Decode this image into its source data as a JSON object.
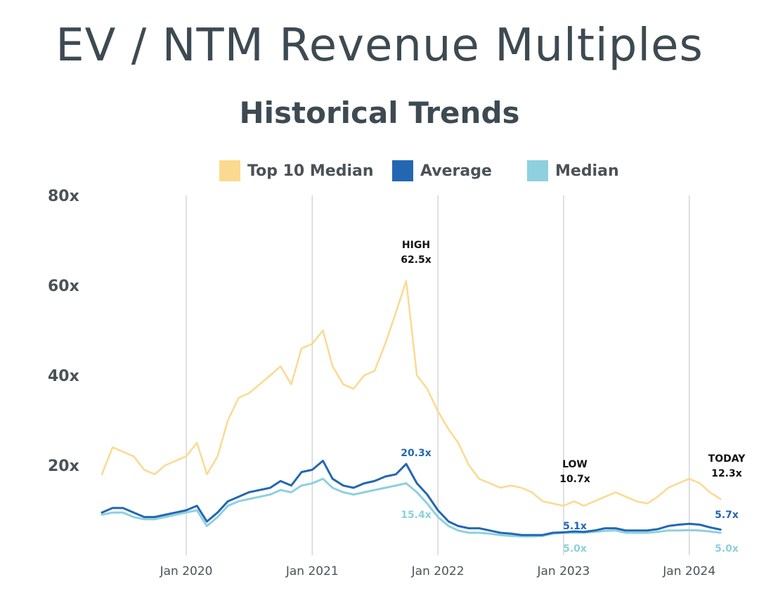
{
  "title": "EV / NTM Revenue Multiples",
  "subtitle": "Historical Trends",
  "colors": {
    "top10": "#fcd990",
    "average": "#2367b3",
    "median": "#8ed0de",
    "grid": "#d6d6d6",
    "text": "#3d4a52"
  },
  "chart_data": {
    "type": "line",
    "ylim": [
      0,
      80
    ],
    "yticks": [
      {
        "value": 20,
        "label": "20x"
      },
      {
        "value": 40,
        "label": "40x"
      },
      {
        "value": 60,
        "label": "60x"
      },
      {
        "value": 80,
        "label": "80x"
      }
    ],
    "xlim": [
      "2019-05-01",
      "2024-05-01"
    ],
    "xticks": [
      {
        "x": "2020-01-01",
        "label": "Jan 2020"
      },
      {
        "x": "2021-01-01",
        "label": "Jan 2021"
      },
      {
        "x": "2022-01-01",
        "label": "Jan 2022"
      },
      {
        "x": "2023-01-01",
        "label": "Jan 2023"
      },
      {
        "x": "2024-01-01",
        "label": "Jan 2024"
      }
    ],
    "grid": "vertical",
    "legend": "top",
    "series": [
      {
        "name": "Top 10 Median",
        "x": [
          "2019-05-01",
          "2019-06-01",
          "2019-07-01",
          "2019-08-01",
          "2019-09-01",
          "2019-10-01",
          "2019-11-01",
          "2019-12-01",
          "2020-01-01",
          "2020-02-01",
          "2020-03-01",
          "2020-04-01",
          "2020-05-01",
          "2020-06-01",
          "2020-07-01",
          "2020-08-01",
          "2020-09-01",
          "2020-10-01",
          "2020-11-01",
          "2020-12-01",
          "2021-01-01",
          "2021-02-01",
          "2021-03-01",
          "2021-04-01",
          "2021-05-01",
          "2021-06-01",
          "2021-07-01",
          "2021-08-01",
          "2021-09-01",
          "2021-10-01",
          "2021-11-01",
          "2021-12-01",
          "2022-01-01",
          "2022-02-01",
          "2022-03-01",
          "2022-04-01",
          "2022-05-01",
          "2022-06-01",
          "2022-07-01",
          "2022-08-01",
          "2022-09-01",
          "2022-10-01",
          "2022-11-01",
          "2022-12-01",
          "2023-01-01",
          "2023-02-01",
          "2023-03-01",
          "2023-04-01",
          "2023-05-01",
          "2023-06-01",
          "2023-07-01",
          "2023-08-01",
          "2023-09-01",
          "2023-10-01",
          "2023-11-01",
          "2023-12-01",
          "2024-01-01",
          "2024-02-01",
          "2024-03-01",
          "2024-04-01"
        ],
        "y": [
          18,
          24,
          23,
          22,
          19,
          18,
          20,
          21,
          22,
          25,
          18,
          22,
          30,
          35,
          36,
          38,
          40,
          42,
          38,
          46,
          47,
          50,
          42,
          38,
          37,
          40,
          41,
          47,
          54,
          61,
          40,
          37,
          32,
          28,
          25,
          20,
          17,
          16,
          15,
          15.5,
          15,
          14,
          12,
          11.5,
          11,
          12,
          11,
          12,
          13,
          14,
          13,
          12,
          11.5,
          13,
          15,
          16,
          17,
          16,
          14,
          12.5
        ]
      },
      {
        "name": "Average",
        "x": [
          "2019-05-01",
          "2019-06-01",
          "2019-07-01",
          "2019-08-01",
          "2019-09-01",
          "2019-10-01",
          "2019-11-01",
          "2019-12-01",
          "2020-01-01",
          "2020-02-01",
          "2020-03-01",
          "2020-04-01",
          "2020-05-01",
          "2020-06-01",
          "2020-07-01",
          "2020-08-01",
          "2020-09-01",
          "2020-10-01",
          "2020-11-01",
          "2020-12-01",
          "2021-01-01",
          "2021-02-01",
          "2021-03-01",
          "2021-04-01",
          "2021-05-01",
          "2021-06-01",
          "2021-07-01",
          "2021-08-01",
          "2021-09-01",
          "2021-10-01",
          "2021-11-01",
          "2021-12-01",
          "2022-01-01",
          "2022-02-01",
          "2022-03-01",
          "2022-04-01",
          "2022-05-01",
          "2022-06-01",
          "2022-07-01",
          "2022-08-01",
          "2022-09-01",
          "2022-10-01",
          "2022-11-01",
          "2022-12-01",
          "2023-01-01",
          "2023-02-01",
          "2023-03-01",
          "2023-04-01",
          "2023-05-01",
          "2023-06-01",
          "2023-07-01",
          "2023-08-01",
          "2023-09-01",
          "2023-10-01",
          "2023-11-01",
          "2023-12-01",
          "2024-01-01",
          "2024-02-01",
          "2024-03-01",
          "2024-04-01"
        ],
        "y": [
          9.5,
          10.5,
          10.5,
          9.5,
          8.5,
          8.5,
          9,
          9.5,
          10,
          11,
          7.5,
          9.5,
          12,
          13,
          14,
          14.5,
          15,
          16.5,
          15.5,
          18.5,
          19,
          21,
          17,
          15.5,
          15,
          16,
          16.5,
          17.5,
          18,
          20.3,
          16,
          13.5,
          10,
          7.5,
          6.5,
          6,
          6,
          5.5,
          5,
          4.8,
          4.5,
          4.5,
          4.5,
          5,
          5.1,
          5.3,
          5.2,
          5.5,
          6,
          6,
          5.5,
          5.5,
          5.5,
          5.8,
          6.5,
          6.8,
          7,
          6.8,
          6.2,
          5.7
        ]
      },
      {
        "name": "Median",
        "x": [
          "2019-05-01",
          "2019-06-01",
          "2019-07-01",
          "2019-08-01",
          "2019-09-01",
          "2019-10-01",
          "2019-11-01",
          "2019-12-01",
          "2020-01-01",
          "2020-02-01",
          "2020-03-01",
          "2020-04-01",
          "2020-05-01",
          "2020-06-01",
          "2020-07-01",
          "2020-08-01",
          "2020-09-01",
          "2020-10-01",
          "2020-11-01",
          "2020-12-01",
          "2021-01-01",
          "2021-02-01",
          "2021-03-01",
          "2021-04-01",
          "2021-05-01",
          "2021-06-01",
          "2021-07-01",
          "2021-08-01",
          "2021-09-01",
          "2021-10-01",
          "2021-11-01",
          "2021-12-01",
          "2022-01-01",
          "2022-02-01",
          "2022-03-01",
          "2022-04-01",
          "2022-05-01",
          "2022-06-01",
          "2022-07-01",
          "2022-08-01",
          "2022-09-01",
          "2022-10-01",
          "2022-11-01",
          "2022-12-01",
          "2023-01-01",
          "2023-02-01",
          "2023-03-01",
          "2023-04-01",
          "2023-05-01",
          "2023-06-01",
          "2023-07-01",
          "2023-08-01",
          "2023-09-01",
          "2023-10-01",
          "2023-11-01",
          "2023-12-01",
          "2024-01-01",
          "2024-02-01",
          "2024-03-01",
          "2024-04-01"
        ],
        "y": [
          9,
          9.5,
          9.5,
          8.5,
          8,
          8,
          8.5,
          9,
          9.5,
          10,
          6.5,
          8.5,
          11,
          12,
          12.5,
          13,
          13.5,
          14.5,
          14,
          15.5,
          16,
          17,
          15,
          14,
          13.5,
          14,
          14.5,
          15,
          15.5,
          16,
          14,
          11.5,
          8.5,
          6.5,
          5.5,
          5,
          5,
          4.8,
          4.5,
          4.3,
          4.2,
          4.2,
          4.3,
          4.8,
          5,
          5,
          5,
          5.2,
          5.4,
          5.5,
          5,
          5,
          5,
          5.2,
          5.5,
          5.5,
          5.6,
          5.5,
          5.3,
          5
        ]
      }
    ],
    "annotations": [
      {
        "lines": [
          "HIGH",
          "62.5x"
        ],
        "series": "Top 10 Median"
      },
      {
        "lines": [
          "20.3x"
        ],
        "series": "Average"
      },
      {
        "lines": [
          "15.4x"
        ],
        "series": "Median"
      },
      {
        "lines": [
          "LOW",
          "10.7x"
        ],
        "series": "Top 10 Median"
      },
      {
        "lines": [
          "5.1x"
        ],
        "series": "Average"
      },
      {
        "lines": [
          "5.0x"
        ],
        "series": "Median"
      },
      {
        "lines": [
          "TODAY",
          "12.3x"
        ],
        "series": "Top 10 Median"
      },
      {
        "lines": [
          "5.7x"
        ],
        "series": "Average"
      },
      {
        "lines": [
          "5.0x"
        ],
        "series": "Median"
      }
    ]
  }
}
